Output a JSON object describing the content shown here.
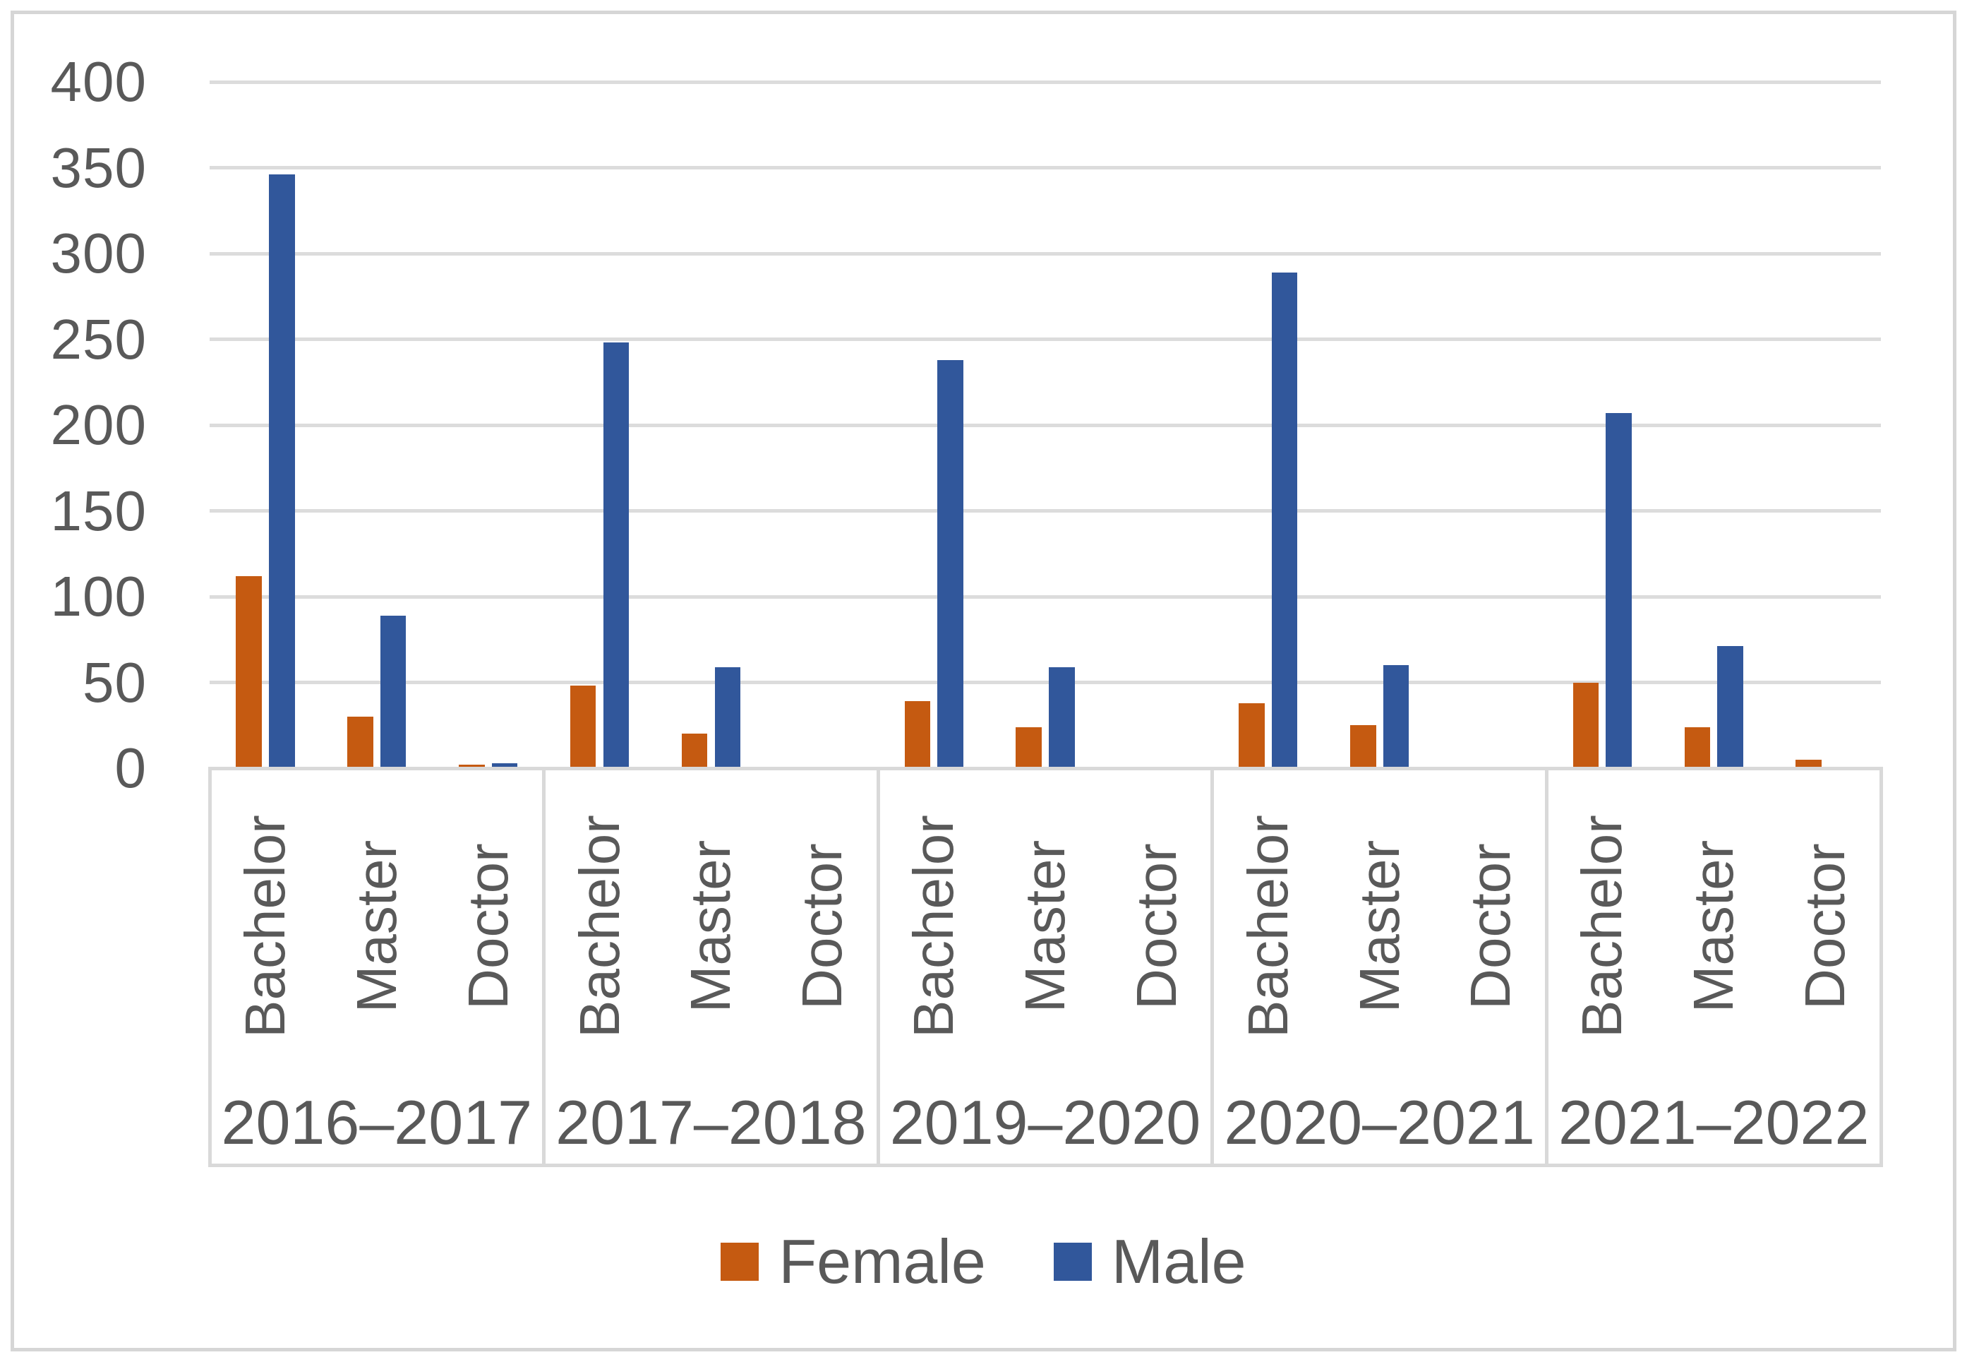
{
  "chart_data": {
    "type": "bar",
    "title": "",
    "grid": true,
    "legend_position": "bottom",
    "y_axis": {
      "min": 0,
      "max": 400,
      "step": 50,
      "tick_labels": [
        "0",
        "50",
        "100",
        "150",
        "200",
        "250",
        "300",
        "350",
        "400"
      ]
    },
    "category_levels": [
      "degree",
      "academic_year"
    ],
    "series_names": [
      "Female",
      "Male"
    ],
    "colors": {
      "female": "#c55a11",
      "male": "#31579b",
      "gridline": "#dcdcdc",
      "axis_box": "#d9d9d9",
      "text": "#595959",
      "chart_border": "#d6d6d6"
    },
    "groups": [
      {
        "label": "2016–2017",
        "categories": [
          {
            "label": "Bachelor",
            "values": {
              "Female": 112,
              "Male": 346
            }
          },
          {
            "label": "Master",
            "values": {
              "Female": 30,
              "Male": 89
            }
          },
          {
            "label": "Doctor",
            "values": {
              "Female": 2,
              "Male": 3
            }
          }
        ]
      },
      {
        "label": "2017–2018",
        "categories": [
          {
            "label": "Bachelor",
            "values": {
              "Female": 48,
              "Male": 248
            }
          },
          {
            "label": "Master",
            "values": {
              "Female": 20,
              "Male": 59
            }
          },
          {
            "label": "Doctor",
            "values": {
              "Female": 0,
              "Male": 0
            }
          }
        ]
      },
      {
        "label": "2019–2020",
        "categories": [
          {
            "label": "Bachelor",
            "values": {
              "Female": 39,
              "Male": 238
            }
          },
          {
            "label": "Master",
            "values": {
              "Female": 24,
              "Male": 59
            }
          },
          {
            "label": "Doctor",
            "values": {
              "Female": 0,
              "Male": 0
            }
          }
        ]
      },
      {
        "label": "2020–2021",
        "categories": [
          {
            "label": "Bachelor",
            "values": {
              "Female": 38,
              "Male": 289
            }
          },
          {
            "label": "Master",
            "values": {
              "Female": 25,
              "Male": 60
            }
          },
          {
            "label": "Doctor",
            "values": {
              "Female": 0,
              "Male": 0
            }
          }
        ]
      },
      {
        "label": "2021–2022",
        "categories": [
          {
            "label": "Bachelor",
            "values": {
              "Female": 50,
              "Male": 207
            }
          },
          {
            "label": "Master",
            "values": {
              "Female": 24,
              "Male": 71
            }
          },
          {
            "label": "Doctor",
            "values": {
              "Female": 5,
              "Male": 0
            }
          }
        ]
      }
    ],
    "legend": [
      {
        "name": "Female",
        "color": "#c55a11"
      },
      {
        "name": "Male",
        "color": "#31579b"
      }
    ]
  }
}
